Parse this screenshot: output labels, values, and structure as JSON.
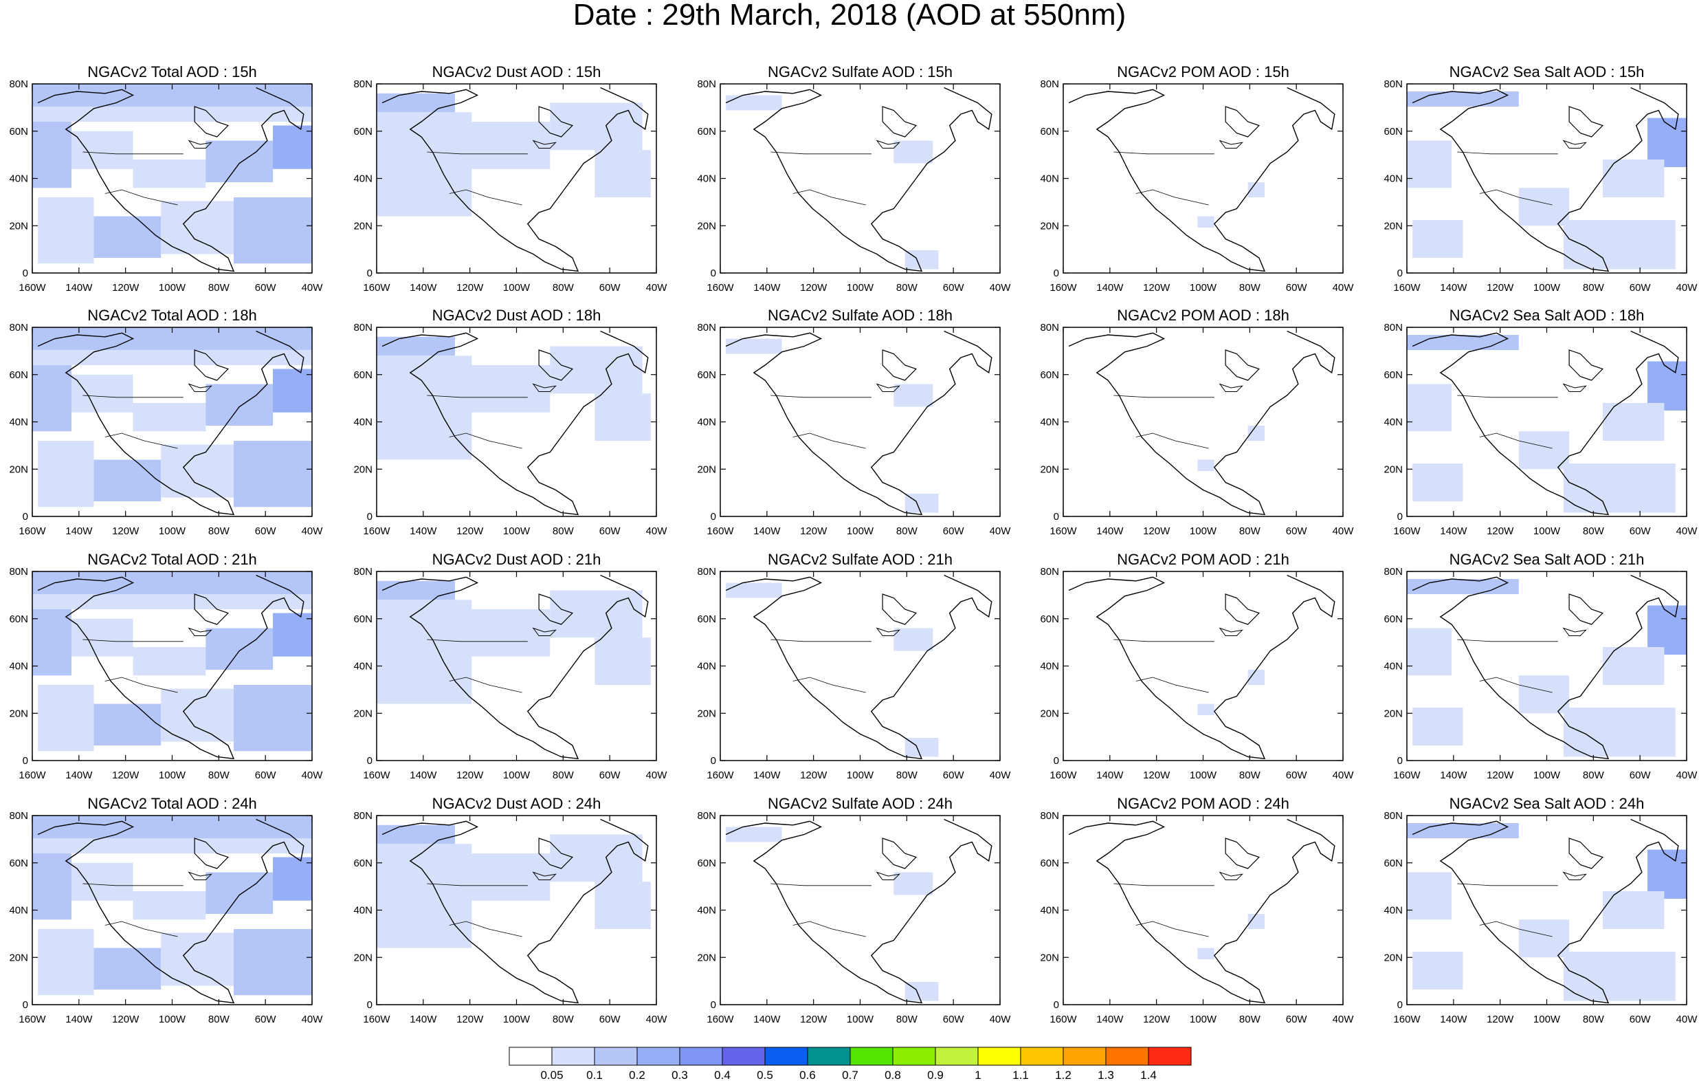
{
  "title": "Date : 29th March, 2018 (AOD at 550nm)",
  "x_ticks": [
    "160W",
    "140W",
    "120W",
    "100W",
    "80W",
    "60W",
    "40W"
  ],
  "y_ticks": [
    "80N",
    "60N",
    "40N",
    "20N",
    "0"
  ],
  "rows": [
    "15h",
    "18h",
    "21h",
    "24h"
  ],
  "panel_titles": [
    [
      "NGACv2 Total AOD : 15h",
      "NGACv2 Dust AOD : 15h",
      "NGACv2 Sulfate AOD : 15h",
      "NGACv2 POM AOD : 15h",
      "NGACv2 Sea Salt AOD : 15h"
    ],
    [
      "NGACv2 Total AOD : 18h",
      "NGACv2 Dust AOD : 18h",
      "NGACv2 Sulfate AOD : 18h",
      "NGACv2 POM AOD : 18h",
      "NGACv2 Sea Salt AOD : 18h"
    ],
    [
      "NGACv2 Total AOD : 21h",
      "NGACv2 Dust AOD : 21h",
      "NGACv2 Sulfate AOD : 21h",
      "NGACv2 POM AOD : 21h",
      "NGACv2 Sea Salt AOD : 21h"
    ],
    [
      "NGACv2 Total AOD : 24h",
      "NGACv2 Dust AOD : 24h",
      "NGACv2 Sulfate AOD : 24h",
      "NGACv2 POM AOD : 24h",
      "NGACv2 Sea Salt  AOD : 24h"
    ]
  ],
  "colorbar": {
    "labels": [
      "0.05",
      "0.1",
      "0.2",
      "0.3",
      "0.4",
      "0.5",
      "0.6",
      "0.7",
      "0.8",
      "0.9",
      "1",
      "1.1",
      "1.2",
      "1.3",
      "1.4"
    ],
    "colors": [
      "#ffffff",
      "#d6e0fa",
      "#b4c6f8",
      "#96aef6",
      "#7f95f3",
      "#6364ea",
      "#0a5ff0",
      "#02918f",
      "#54e400",
      "#8cef00",
      "#c2f23c",
      "#fefe00",
      "#fec600",
      "#fea400",
      "#fe7400",
      "#fe2a14"
    ]
  },
  "map_colors": {
    "light": "#d6e0fa",
    "mid": "#b4c6f8",
    "strong": "#96aef6",
    "coast": "#000000"
  }
}
